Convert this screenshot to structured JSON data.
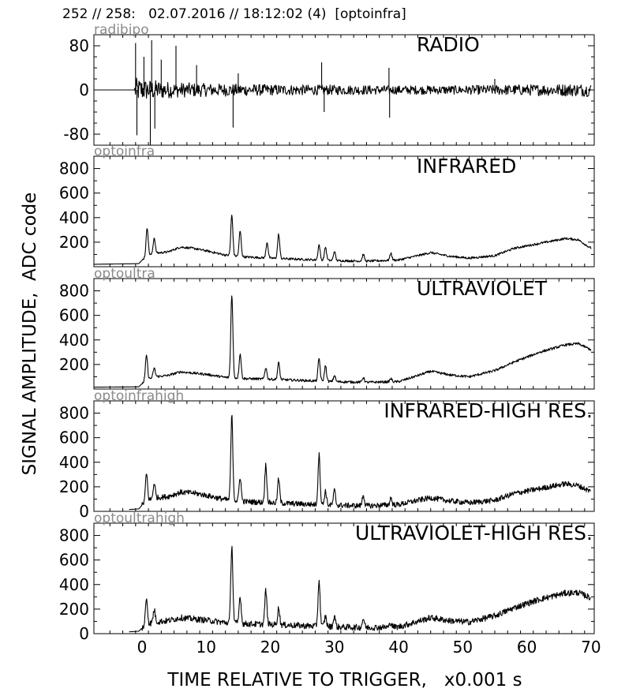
{
  "header": "252 // 258:   02.07.2016 // 18:12:02 (4)  [optoinfra]",
  "chart_data": {
    "type": "line",
    "xlabel": "TIME RELATIVE TO TRIGGER,   x0.001 s",
    "ylabel": "SIGNAL AMPLITUDE,  ADC code",
    "xlim": [
      -7.5,
      70.5
    ],
    "xticks": [
      0,
      10,
      20,
      30,
      40,
      50,
      60,
      70
    ],
    "panels": [
      {
        "channel": "radibipo",
        "title": "RADIO",
        "ylim": [
          -100,
          100
        ],
        "yticks": [
          80,
          0,
          -80
        ],
        "signal": "bipolar-noise",
        "baseline": 0,
        "noise_envelope": [
          [
            -7.5,
            0
          ],
          [
            -1.2,
            0
          ],
          [
            -1,
            22
          ],
          [
            0,
            20
          ],
          [
            2,
            18
          ],
          [
            5,
            14
          ],
          [
            10,
            12
          ],
          [
            20,
            10
          ],
          [
            30,
            9
          ],
          [
            40,
            8
          ],
          [
            50,
            8
          ],
          [
            60,
            10
          ],
          [
            70,
            12
          ]
        ],
        "spikes": [
          [
            -1,
            85
          ],
          [
            -0.8,
            -82
          ],
          [
            0.3,
            60
          ],
          [
            1.3,
            -100
          ],
          [
            1.5,
            90
          ],
          [
            2,
            -70
          ],
          [
            3,
            55
          ],
          [
            5.3,
            80
          ],
          [
            8.5,
            45
          ],
          [
            14.2,
            -68
          ],
          [
            15,
            30
          ],
          [
            28,
            50
          ],
          [
            28.4,
            -40
          ],
          [
            38.5,
            40
          ],
          [
            38.6,
            -50
          ],
          [
            55,
            20
          ]
        ]
      },
      {
        "channel": "optoinfra",
        "title": "INFRARED",
        "ylim": [
          0,
          900
        ],
        "yticks": [
          200,
          400,
          600,
          800
        ],
        "signal": "envelope",
        "baseline": 20,
        "envelope": [
          [
            -7.5,
            20
          ],
          [
            -0.5,
            25
          ],
          [
            0.5,
            80
          ],
          [
            2,
            110
          ],
          [
            4,
            120
          ],
          [
            6,
            160
          ],
          [
            8,
            150
          ],
          [
            10,
            130
          ],
          [
            13,
            95
          ],
          [
            16,
            80
          ],
          [
            20,
            70
          ],
          [
            25,
            60
          ],
          [
            30,
            50
          ],
          [
            35,
            45
          ],
          [
            40,
            55
          ],
          [
            43,
            90
          ],
          [
            45,
            115
          ],
          [
            48,
            85
          ],
          [
            51,
            70
          ],
          [
            55,
            90
          ],
          [
            58,
            150
          ],
          [
            62,
            190
          ],
          [
            66,
            230
          ],
          [
            68,
            220
          ],
          [
            70,
            150
          ]
        ],
        "peaks": [
          [
            0.8,
            320
          ],
          [
            1.9,
            235
          ],
          [
            14,
            420
          ],
          [
            15.3,
            290
          ],
          [
            19.5,
            200
          ],
          [
            21.3,
            265
          ],
          [
            27.6,
            180
          ],
          [
            28.6,
            160
          ],
          [
            30,
            125
          ],
          [
            34.5,
            100
          ],
          [
            38.8,
            110
          ]
        ],
        "noise": 9
      },
      {
        "channel": "optoultra",
        "title": "ULTRAVIOLET",
        "ylim": [
          0,
          900
        ],
        "yticks": [
          200,
          400,
          600,
          800
        ],
        "signal": "envelope",
        "baseline": 15,
        "envelope": [
          [
            -7.5,
            15
          ],
          [
            -0.5,
            18
          ],
          [
            0.5,
            70
          ],
          [
            2,
            100
          ],
          [
            4,
            110
          ],
          [
            6,
            140
          ],
          [
            8,
            130
          ],
          [
            10,
            120
          ],
          [
            13,
            95
          ],
          [
            16,
            85
          ],
          [
            20,
            80
          ],
          [
            25,
            70
          ],
          [
            30,
            60
          ],
          [
            35,
            55
          ],
          [
            40,
            60
          ],
          [
            43,
            110
          ],
          [
            45,
            145
          ],
          [
            48,
            115
          ],
          [
            51,
            100
          ],
          [
            55,
            150
          ],
          [
            58,
            220
          ],
          [
            62,
            300
          ],
          [
            66,
            360
          ],
          [
            68,
            370
          ],
          [
            70,
            320
          ]
        ],
        "peaks": [
          [
            0.7,
            275
          ],
          [
            1.9,
            170
          ],
          [
            14,
            770
          ],
          [
            15.3,
            285
          ],
          [
            19.3,
            175
          ],
          [
            21.3,
            215
          ],
          [
            27.6,
            250
          ],
          [
            28.6,
            190
          ],
          [
            30,
            110
          ],
          [
            34.5,
            95
          ],
          [
            38.8,
            85
          ]
        ],
        "noise": 10
      },
      {
        "channel": "optoinfrahigh",
        "title": "INFRARED-HIGH RES.",
        "ylim": [
          0,
          900
        ],
        "yticks": [
          0,
          200,
          400,
          600,
          800
        ],
        "signal": "envelope",
        "baseline": 15,
        "envelope": [
          [
            -2,
            15
          ],
          [
            -0.5,
            20
          ],
          [
            0.5,
            80
          ],
          [
            2,
            110
          ],
          [
            4,
            120
          ],
          [
            6,
            155
          ],
          [
            8,
            150
          ],
          [
            10,
            130
          ],
          [
            13,
            95
          ],
          [
            16,
            80
          ],
          [
            20,
            70
          ],
          [
            25,
            60
          ],
          [
            30,
            50
          ],
          [
            35,
            45
          ],
          [
            40,
            55
          ],
          [
            43,
            90
          ],
          [
            45,
            110
          ],
          [
            48,
            85
          ],
          [
            51,
            70
          ],
          [
            55,
            90
          ],
          [
            58,
            145
          ],
          [
            62,
            185
          ],
          [
            66,
            225
          ],
          [
            68,
            210
          ],
          [
            70,
            160
          ]
        ],
        "peaks": [
          [
            0.7,
            305
          ],
          [
            1.9,
            230
          ],
          [
            14,
            775
          ],
          [
            15.3,
            280
          ],
          [
            19.3,
            380
          ],
          [
            21.3,
            265
          ],
          [
            27.6,
            460
          ],
          [
            28.6,
            165
          ],
          [
            30,
            170
          ],
          [
            34.5,
            135
          ],
          [
            38.8,
            110
          ]
        ],
        "noise": 22
      },
      {
        "channel": "optoultrahigh",
        "title": "ULTRAVIOLET-HIGH RES.",
        "ylim": [
          0,
          900
        ],
        "yticks": [
          0,
          200,
          400,
          600,
          800
        ],
        "signal": "envelope",
        "baseline": 15,
        "envelope": [
          [
            -2,
            15
          ],
          [
            -0.5,
            20
          ],
          [
            0.5,
            70
          ],
          [
            2,
            95
          ],
          [
            4,
            105
          ],
          [
            6,
            130
          ],
          [
            8,
            120
          ],
          [
            10,
            110
          ],
          [
            13,
            90
          ],
          [
            16,
            80
          ],
          [
            20,
            75
          ],
          [
            25,
            65
          ],
          [
            30,
            55
          ],
          [
            35,
            50
          ],
          [
            40,
            55
          ],
          [
            43,
            100
          ],
          [
            45,
            130
          ],
          [
            48,
            105
          ],
          [
            51,
            95
          ],
          [
            55,
            145
          ],
          [
            58,
            210
          ],
          [
            62,
            280
          ],
          [
            66,
            330
          ],
          [
            68,
            335
          ],
          [
            70,
            290
          ]
        ],
        "peaks": [
          [
            0.7,
            285
          ],
          [
            1.9,
            195
          ],
          [
            14,
            715
          ],
          [
            15.3,
            305
          ],
          [
            19.3,
            350
          ],
          [
            21.3,
            210
          ],
          [
            27.6,
            430
          ],
          [
            28.6,
            140
          ],
          [
            30,
            145
          ],
          [
            34.5,
            125
          ],
          [
            38.8,
            90
          ]
        ],
        "noise": 25
      }
    ]
  }
}
